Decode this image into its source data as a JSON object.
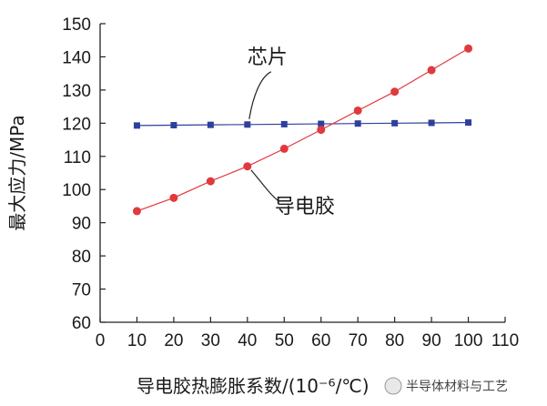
{
  "chart_data": {
    "type": "line",
    "title": "",
    "xlabel": "导电胶热膨胀系数/(10⁻⁶/℃)",
    "ylabel": "最大应力/MPa",
    "xlim": [
      0,
      110
    ],
    "ylim": [
      60,
      150
    ],
    "x_ticks": [
      0,
      10,
      20,
      30,
      40,
      50,
      60,
      70,
      80,
      90,
      100,
      110
    ],
    "y_ticks": [
      60,
      70,
      80,
      90,
      100,
      110,
      120,
      130,
      140,
      150
    ],
    "grid": false,
    "x": [
      10,
      20,
      30,
      40,
      50,
      60,
      70,
      80,
      90,
      100
    ],
    "series": [
      {
        "name": "芯片",
        "color": "#2e3f9e",
        "marker": "square",
        "values": [
          119.3,
          119.4,
          119.5,
          119.6,
          119.7,
          119.8,
          119.9,
          120.0,
          120.1,
          120.2
        ]
      },
      {
        "name": "导电胶",
        "color": "#e0393e",
        "marker": "circle",
        "values": [
          93.5,
          97.5,
          102.5,
          107.0,
          112.3,
          118.0,
          123.8,
          129.5,
          136.0,
          142.5
        ]
      }
    ],
    "annotations": [
      {
        "text": "芯片",
        "series": "芯片"
      },
      {
        "text": "导电胶",
        "series": "导电胶"
      }
    ]
  },
  "watermark": "半导体材料与工艺"
}
